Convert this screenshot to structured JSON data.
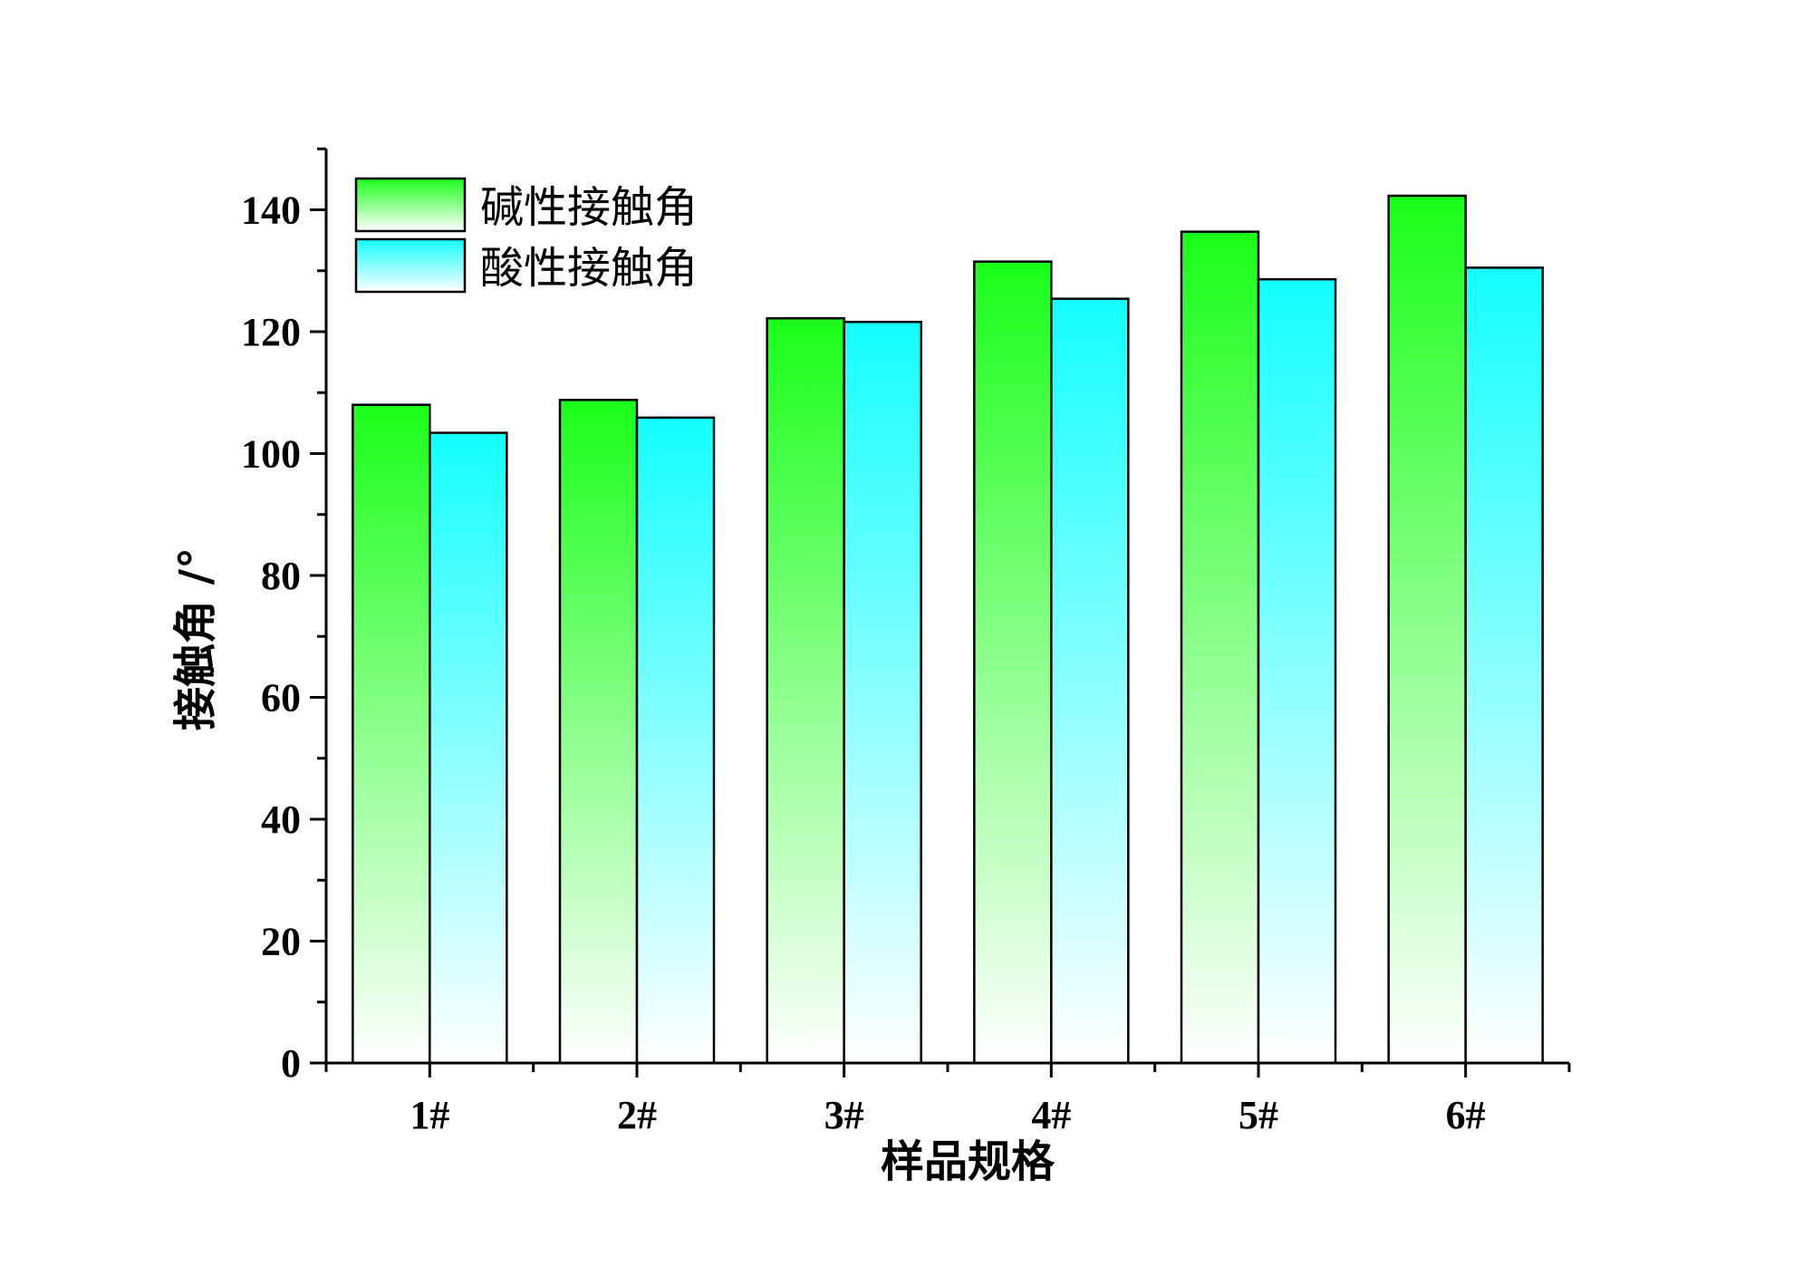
{
  "chart_data": {
    "type": "bar",
    "categories": [
      "1#",
      "2#",
      "3#",
      "4#",
      "5#",
      "6#"
    ],
    "series": [
      {
        "name": "碱性接触角",
        "values": [
          108.0,
          108.8,
          122.2,
          131.5,
          136.4,
          142.3
        ],
        "color_top": "#1aff1a",
        "color_bottom": "#ffffff"
      },
      {
        "name": "酸性接触角",
        "values": [
          103.4,
          105.9,
          121.6,
          125.4,
          128.6,
          130.5
        ],
        "color_top": "#14ffff",
        "color_bottom": "#ffffff"
      }
    ],
    "xlabel": "样品规格",
    "ylabel": "接触角 /°",
    "ylim": [
      0,
      150
    ],
    "yticks": [
      0,
      20,
      40,
      60,
      80,
      100,
      120,
      140
    ],
    "grid": false,
    "legend_position": "top-left"
  }
}
